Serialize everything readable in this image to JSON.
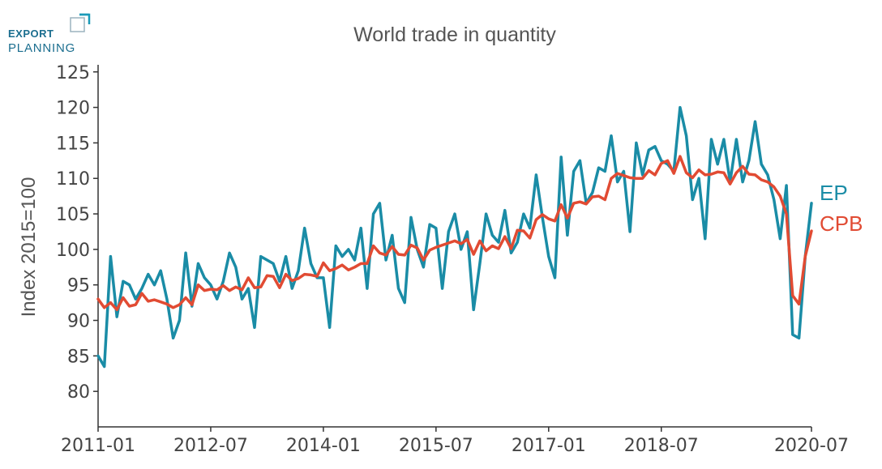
{
  "logo": {
    "line1": "EXPORT",
    "line2": "PLANNING"
  },
  "colors": {
    "ep": "#1a8ca6",
    "cpb": "#e14b33",
    "axis": "#333333",
    "title": "#555555",
    "brand": "#1b6e8f"
  },
  "chart_data": {
    "type": "line",
    "title": "World trade in quantity",
    "xlabel": "",
    "ylabel": "Index 2015=100",
    "ylim": [
      75,
      126
    ],
    "yticks": [
      80,
      85,
      90,
      95,
      100,
      105,
      110,
      115,
      120,
      125
    ],
    "xtick_labels": [
      "2011-01",
      "2012-07",
      "2014-01",
      "2015-07",
      "2017-01",
      "2018-07",
      "2020-07"
    ],
    "start": "2011-01",
    "end": "2020-07",
    "grid": false,
    "legend": "end-of-line labels",
    "series": [
      {
        "name": "EP",
        "values": [
          85.0,
          83.5,
          99.0,
          90.5,
          95.5,
          95.0,
          93.0,
          94.5,
          96.5,
          95.0,
          97.0,
          93.0,
          87.5,
          90.0,
          99.5,
          92.0,
          98.0,
          96.0,
          95.0,
          93.0,
          95.5,
          99.5,
          97.5,
          93.0,
          94.5,
          89.0,
          99.0,
          98.5,
          98.0,
          95.5,
          99.0,
          94.5,
          97.0,
          103.0,
          98.0,
          96.0,
          96.0,
          89.0,
          100.5,
          99.0,
          100.0,
          98.5,
          103.0,
          94.5,
          105.0,
          106.5,
          98.5,
          102.0,
          94.5,
          92.5,
          104.5,
          100.0,
          97.5,
          103.5,
          103.0,
          94.5,
          102.5,
          105.0,
          100.0,
          102.5,
          91.5,
          98.0,
          105.0,
          102.0,
          101.0,
          105.5,
          99.5,
          101.0,
          105.0,
          103.0,
          110.5,
          104.5,
          99.0,
          96.0,
          113.0,
          102.0,
          111.0,
          112.5,
          106.5,
          108.0,
          111.5,
          111.0,
          116.0,
          109.5,
          111.0,
          102.5,
          115.0,
          110.5,
          114.0,
          114.5,
          112.5,
          112.0,
          111.0,
          120.0,
          116.0,
          107.0,
          110.0,
          101.5,
          115.5,
          112.0,
          115.5,
          109.5,
          115.5,
          109.5,
          112.5,
          118.0,
          112.0,
          110.5,
          107.0,
          101.5,
          109.0,
          88.0,
          87.5,
          99.0,
          106.5
        ]
      },
      {
        "name": "CPB",
        "values": [
          93.0,
          91.8,
          92.5,
          91.5,
          93.2,
          92.0,
          92.2,
          93.8,
          92.7,
          92.9,
          92.6,
          92.3,
          91.8,
          92.2,
          93.2,
          92.2,
          95.0,
          94.2,
          94.4,
          94.3,
          94.9,
          94.2,
          94.7,
          94.3,
          96.0,
          94.6,
          94.7,
          96.3,
          96.2,
          94.6,
          96.5,
          95.6,
          95.9,
          96.5,
          96.4,
          96.2,
          98.1,
          97.0,
          97.3,
          97.8,
          97.1,
          97.5,
          98.0,
          98.0,
          100.5,
          99.5,
          99.2,
          100.4,
          99.3,
          99.2,
          100.6,
          100.2,
          98.5,
          99.9,
          100.3,
          100.6,
          100.9,
          101.2,
          100.8,
          101.4,
          99.3,
          101.2,
          99.8,
          100.5,
          100.1,
          101.8,
          100.1,
          102.7,
          102.6,
          101.6,
          104.2,
          104.9,
          104.3,
          104.0,
          106.3,
          104.4,
          106.5,
          106.7,
          106.4,
          107.4,
          107.5,
          107.0,
          110.0,
          110.7,
          110.4,
          110.1,
          110.0,
          110.0,
          111.1,
          110.5,
          112.1,
          112.5,
          110.7,
          113.1,
          110.8,
          110.1,
          111.2,
          110.5,
          110.6,
          110.9,
          110.8,
          109.2,
          110.8,
          111.7,
          110.6,
          110.5,
          109.8,
          109.5,
          108.8,
          107.5,
          105.0,
          93.5,
          92.3,
          99.0,
          102.6
        ]
      }
    ]
  }
}
